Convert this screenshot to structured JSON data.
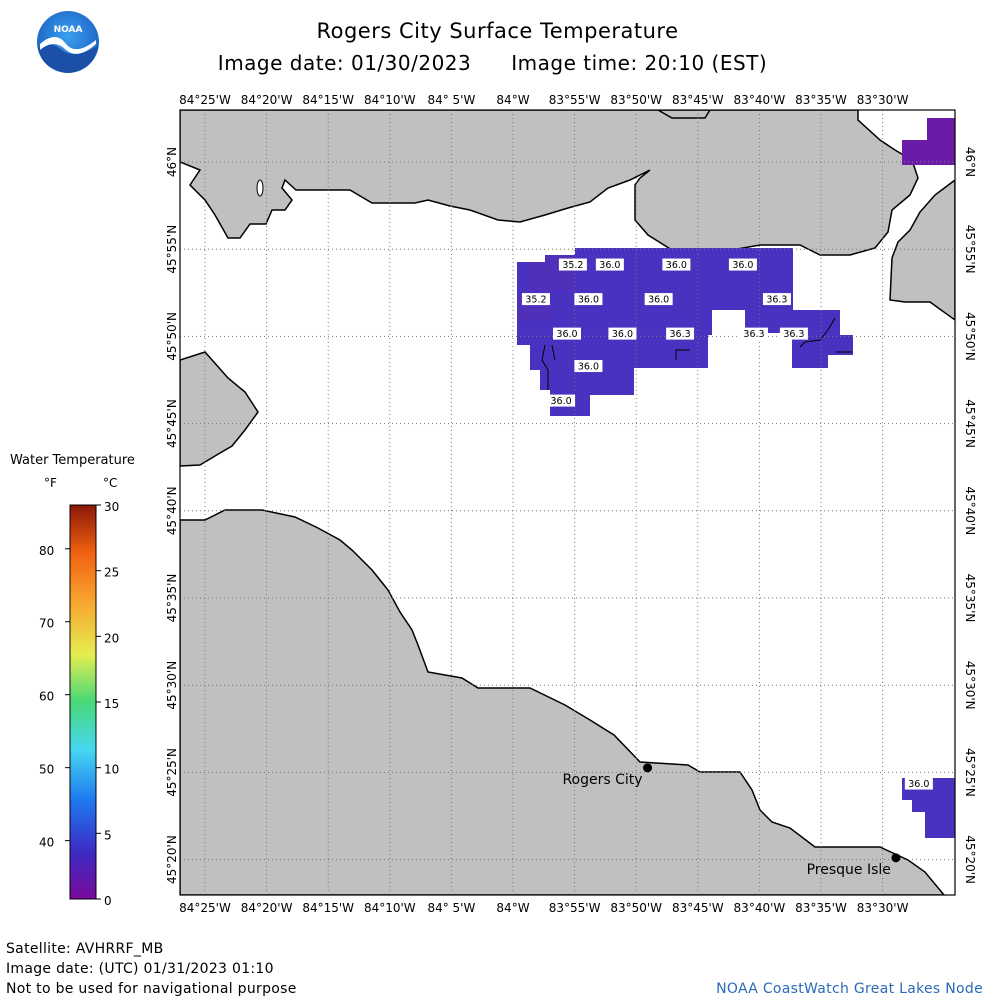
{
  "header": {
    "title": "Rogers City Surface Temperature",
    "image_date_label": "Image date: 01/30/2023",
    "image_time_label": "Image time: 20:10 (EST)"
  },
  "logo": {
    "text": "NOAA",
    "icon": "noaa-logo"
  },
  "map": {
    "lon_labels": [
      "84°25'W",
      "84°20'W",
      "84°15'W",
      "84°10'W",
      "84° 5'W",
      "84°W",
      "83°55'W",
      "83°50'W",
      "83°45'W",
      "83°40'W",
      "83°35'W",
      "83°30'W"
    ],
    "lat_labels": [
      "46°N",
      "45°55'N",
      "45°50'N",
      "45°45'N",
      "45°40'N",
      "45°35'N",
      "45°30'N",
      "45°25'N",
      "45°20'N"
    ],
    "land_color": "#c0c0c0",
    "water_color": "#ffffff",
    "grid": true,
    "temperature_labels": [
      {
        "value": "35.2",
        "lat": 45.902,
        "lon": -83.919
      },
      {
        "value": "36.0",
        "lat": 45.902,
        "lon": -83.869
      },
      {
        "value": "36.0",
        "lat": 45.902,
        "lon": -83.779
      },
      {
        "value": "36.0",
        "lat": 45.902,
        "lon": -83.689
      },
      {
        "value": "35.2",
        "lat": 45.869,
        "lon": -83.969
      },
      {
        "value": "36.0",
        "lat": 45.869,
        "lon": -83.898
      },
      {
        "value": "36.0",
        "lat": 45.869,
        "lon": -83.803
      },
      {
        "value": "36.3",
        "lat": 45.869,
        "lon": -83.643
      },
      {
        "value": "36.0",
        "lat": 45.836,
        "lon": -83.927
      },
      {
        "value": "36.0",
        "lat": 45.836,
        "lon": -83.852
      },
      {
        "value": "36.3",
        "lat": 45.836,
        "lon": -83.774
      },
      {
        "value": "36.3",
        "lat": 45.836,
        "lon": -83.674
      },
      {
        "value": "36.3",
        "lat": 45.836,
        "lon": -83.62
      },
      {
        "value": "36.0",
        "lat": 45.805,
        "lon": -83.898
      },
      {
        "value": "36.0",
        "lat": 45.772,
        "lon": -83.935
      },
      {
        "value": "36.0",
        "lat": 45.406,
        "lon": -83.451
      }
    ],
    "places": [
      {
        "name": "Rogers City",
        "lat": 45.421,
        "lon": -83.818
      },
      {
        "name": "Presque Isle",
        "lat": 45.335,
        "lon": -83.482
      }
    ]
  },
  "legend": {
    "title": "Water Temperature",
    "unit_f": "°F",
    "unit_c": "°C",
    "f_ticks": [
      "40",
      "50",
      "60",
      "70",
      "80"
    ],
    "c_ticks": [
      "0",
      "5",
      "10",
      "15",
      "20",
      "25",
      "30"
    ]
  },
  "footer": {
    "satellite": "Satellite: AVHRRF_MB",
    "utc_date": "Image date: (UTC) 01/31/2023  01:10",
    "disclaimer": "Not to be used for navigational purpose",
    "credit": "NOAA CoastWatch Great Lakes Node"
  }
}
